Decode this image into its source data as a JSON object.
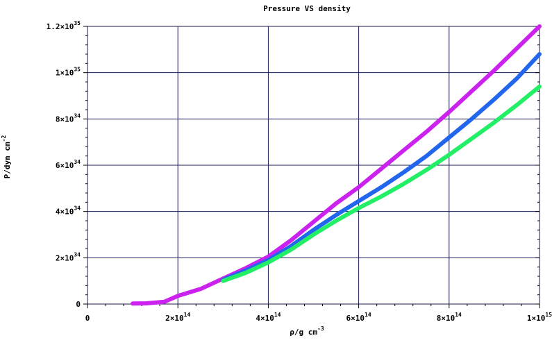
{
  "chart_data": {
    "type": "line",
    "title": "Pressure VS density",
    "xlabel": "ρ/g cm",
    "xlabel_exp": "-3",
    "ylabel": "P/dyn cm",
    "ylabel_exp": "-2",
    "xlim": [
      0,
      1000000000000000
    ],
    "ylim": [
      0,
      1.2e+35
    ],
    "x_ticks": [
      {
        "value": 0,
        "mant": "0",
        "exp": ""
      },
      {
        "value": 200000000000000,
        "mant": "2×10",
        "exp": "14"
      },
      {
        "value": 400000000000000,
        "mant": "4×10",
        "exp": "14"
      },
      {
        "value": 600000000000000,
        "mant": "6×10",
        "exp": "14"
      },
      {
        "value": 800000000000000,
        "mant": "8×10",
        "exp": "14"
      },
      {
        "value": 1000000000000000,
        "mant": "1×10",
        "exp": "15"
      }
    ],
    "y_ticks": [
      {
        "value": 0,
        "mant": "0",
        "exp": ""
      },
      {
        "value": 2e+34,
        "mant": "2×10",
        "exp": "34"
      },
      {
        "value": 4e+34,
        "mant": "4×10",
        "exp": "34"
      },
      {
        "value": 6e+34,
        "mant": "6×10",
        "exp": "34"
      },
      {
        "value": 8e+34,
        "mant": "8×10",
        "exp": "34"
      },
      {
        "value": 1e+35,
        "mant": "1×10",
        "exp": "35"
      },
      {
        "value": 1.2e+35,
        "mant": "1.2×10",
        "exp": "35"
      }
    ],
    "grid": true,
    "series": [
      {
        "color": "#cc22ee",
        "x": [
          100000000000000,
          130000000000000,
          170000000000000,
          200000000000000,
          250000000000000,
          300000000000000,
          350000000000000,
          400000000000000,
          450000000000000,
          500000000000000,
          550000000000000,
          600000000000000,
          650000000000000,
          700000000000000,
          750000000000000,
          800000000000000,
          850000000000000,
          900000000000000,
          950000000000000,
          1000000000000000
        ],
        "y": [
          2e+32,
          3e+32,
          1e+33,
          3.5e+33,
          6.5e+33,
          1.1e+34,
          1.55e+34,
          2.05e+34,
          2.75e+34,
          3.55e+34,
          4.35e+34,
          5.05e+34,
          5.85e+34,
          6.65e+34,
          7.45e+34,
          8.3e+34,
          9.2e+34,
          1.01e+35,
          1.105e+35,
          1.2e+35
        ]
      },
      {
        "color": "#2266ee",
        "x": [
          300000000000000,
          350000000000000,
          400000000000000,
          450000000000000,
          500000000000000,
          550000000000000,
          600000000000000,
          650000000000000,
          700000000000000,
          750000000000000,
          800000000000000,
          850000000000000,
          900000000000000,
          950000000000000,
          1000000000000000
        ],
        "y": [
          1.05e+34,
          1.45e+34,
          1.9e+34,
          2.5e+34,
          3.2e+34,
          3.85e+34,
          4.45e+34,
          5.05e+34,
          5.7e+34,
          6.4e+34,
          7.2e+34,
          8e+34,
          8.85e+34,
          9.75e+34,
          1.08e+35
        ]
      },
      {
        "color": "#22ee66",
        "x": [
          300000000000000,
          350000000000000,
          400000000000000,
          450000000000000,
          500000000000000,
          550000000000000,
          600000000000000,
          650000000000000,
          700000000000000,
          750000000000000,
          800000000000000,
          850000000000000,
          900000000000000,
          950000000000000,
          1000000000000000
        ],
        "y": [
          1e+34,
          1.35e+34,
          1.8e+34,
          2.35e+34,
          3e+34,
          3.6e+34,
          4.15e+34,
          4.65e+34,
          5.2e+34,
          5.8e+34,
          6.45e+34,
          7.15e+34,
          7.85e+34,
          8.6e+34,
          9.4e+34
        ]
      }
    ]
  }
}
